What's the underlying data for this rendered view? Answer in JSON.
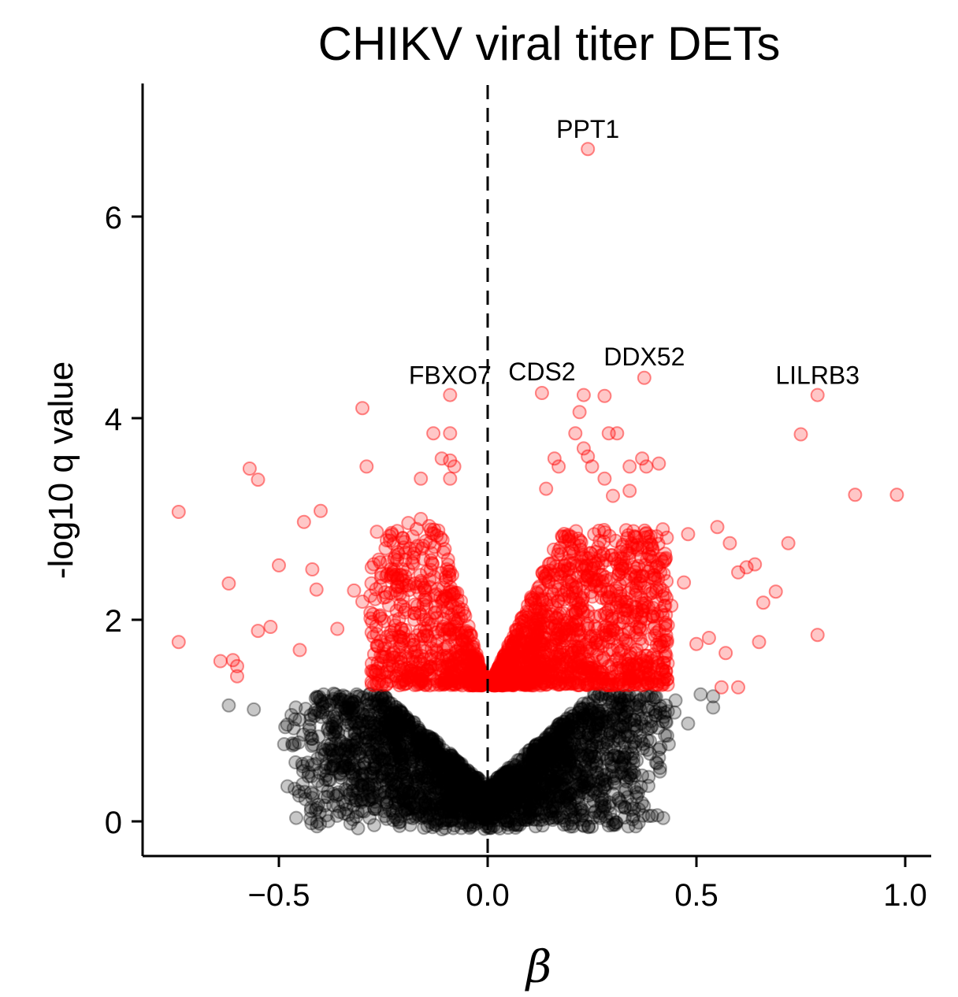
{
  "chart_data": {
    "type": "scatter",
    "subtype": "volcano",
    "title": "CHIKV viral titer DETs",
    "xlabel": "β",
    "ylabel": "-log10 q value",
    "xlim": [
      -0.82,
      1.06
    ],
    "ylim": [
      -0.35,
      7.3
    ],
    "x_ticks": [
      -0.5,
      0.0,
      0.5,
      1.0
    ],
    "x_tick_labels": [
      "−0.5",
      "0.0",
      "0.5",
      "1.0"
    ],
    "y_ticks": [
      0,
      2,
      4,
      6
    ],
    "y_tick_labels": [
      "0",
      "2",
      "4",
      "6"
    ],
    "reference_line": {
      "x": 0,
      "style": "dashed"
    },
    "significance_threshold": 1.3,
    "colors": {
      "significant": "#ff0000",
      "not_significant": "#000000"
    },
    "grid": false,
    "legend": "none",
    "labeled_points": [
      {
        "label": "PPT1",
        "x": 0.24,
        "y": 6.67
      },
      {
        "label": "FBXO7",
        "x": -0.09,
        "y": 4.23
      },
      {
        "label": "CDS2",
        "x": 0.13,
        "y": 4.25
      },
      {
        "label": "DDX52",
        "x": 0.375,
        "y": 4.4
      },
      {
        "label": "LILRB3",
        "x": 0.79,
        "y": 4.23
      }
    ],
    "significant_points": [
      [
        -0.74,
        3.07
      ],
      [
        -0.74,
        1.78
      ],
      [
        -0.61,
        1.6
      ],
      [
        -0.62,
        2.36
      ],
      [
        -0.57,
        3.5
      ],
      [
        -0.55,
        3.39
      ],
      [
        -0.52,
        1.93
      ],
      [
        -0.5,
        2.54
      ],
      [
        -0.44,
        2.97
      ],
      [
        -0.4,
        3.08
      ],
      [
        -0.42,
        2.5
      ],
      [
        -0.41,
        2.3
      ],
      [
        -0.3,
        4.1
      ],
      [
        -0.29,
        3.52
      ],
      [
        -0.32,
        2.29
      ],
      [
        -0.16,
        3.4
      ],
      [
        -0.16,
        3.0
      ],
      [
        -0.13,
        3.85
      ],
      [
        -0.09,
        3.85
      ],
      [
        -0.11,
        3.6
      ],
      [
        -0.09,
        3.58
      ],
      [
        -0.09,
        3.4
      ],
      [
        -0.08,
        3.52
      ],
      [
        -0.19,
        2.96
      ],
      [
        -0.17,
        2.9
      ],
      [
        -0.14,
        2.93
      ],
      [
        -0.3,
        2.18
      ],
      [
        -0.24,
        2.45
      ],
      [
        -0.19,
        2.34
      ],
      [
        -0.36,
        1.91
      ],
      [
        -0.45,
        1.7
      ],
      [
        -0.55,
        1.89
      ],
      [
        -0.6,
        1.54
      ],
      [
        -0.64,
        1.59
      ],
      [
        -0.6,
        1.44
      ],
      [
        0.16,
        3.6
      ],
      [
        0.17,
        3.52
      ],
      [
        0.14,
        3.3
      ],
      [
        0.22,
        4.06
      ],
      [
        0.25,
        3.52
      ],
      [
        0.29,
        3.85
      ],
      [
        0.31,
        3.85
      ],
      [
        0.34,
        3.52
      ],
      [
        0.37,
        3.6
      ],
      [
        0.38,
        3.52
      ],
      [
        0.41,
        3.55
      ],
      [
        0.28,
        3.4
      ],
      [
        0.3,
        3.23
      ],
      [
        0.34,
        3.28
      ],
      [
        0.21,
        3.85
      ],
      [
        0.23,
        3.7
      ],
      [
        0.24,
        3.62
      ],
      [
        0.23,
        4.23
      ],
      [
        0.28,
        4.22
      ],
      [
        0.75,
        3.84
      ],
      [
        0.88,
        3.24
      ],
      [
        0.98,
        3.24
      ],
      [
        0.72,
        2.76
      ],
      [
        0.79,
        1.85
      ],
      [
        0.69,
        2.28
      ],
      [
        0.58,
        2.76
      ],
      [
        0.55,
        2.92
      ],
      [
        0.62,
        2.52
      ],
      [
        0.64,
        2.55
      ],
      [
        0.66,
        2.17
      ],
      [
        0.6,
        2.47
      ],
      [
        0.48,
        2.85
      ],
      [
        0.56,
        1.33
      ],
      [
        0.6,
        1.33
      ],
      [
        0.65,
        1.78
      ],
      [
        0.53,
        1.82
      ],
      [
        0.47,
        2.37
      ],
      [
        0.44,
        2.14
      ],
      [
        0.5,
        1.76
      ],
      [
        0.57,
        1.67
      ]
    ],
    "dense_regions": [
      {
        "color": "significant",
        "x_range": [
          -0.28,
          -0.01
        ],
        "y_range": [
          1.35,
          2.9
        ],
        "count": 700
      },
      {
        "color": "significant",
        "x_range": [
          0.01,
          0.43
        ],
        "y_range": [
          1.35,
          2.9
        ],
        "count": 1400
      },
      {
        "color": "not_significant",
        "x_range": [
          -0.5,
          0.46
        ],
        "y_range": [
          0.0,
          1.3
        ],
        "count": 2600
      }
    ],
    "not_significant_outliers": [
      [
        -0.62,
        1.15
      ],
      [
        -0.56,
        1.11
      ],
      [
        -0.48,
        0.96
      ],
      [
        -0.42,
        0.82
      ],
      [
        -0.38,
        0.72
      ],
      [
        -0.3,
        0.36
      ],
      [
        -0.26,
        0.45
      ],
      [
        -0.2,
        0.3
      ],
      [
        0.21,
        0.48
      ],
      [
        0.26,
        0.32
      ],
      [
        0.35,
        0.78
      ],
      [
        0.45,
        1.2
      ],
      [
        0.48,
        0.97
      ],
      [
        0.51,
        1.26
      ],
      [
        0.54,
        1.13
      ],
      [
        0.54,
        1.24
      ],
      [
        0.43,
        0.85
      ]
    ]
  }
}
